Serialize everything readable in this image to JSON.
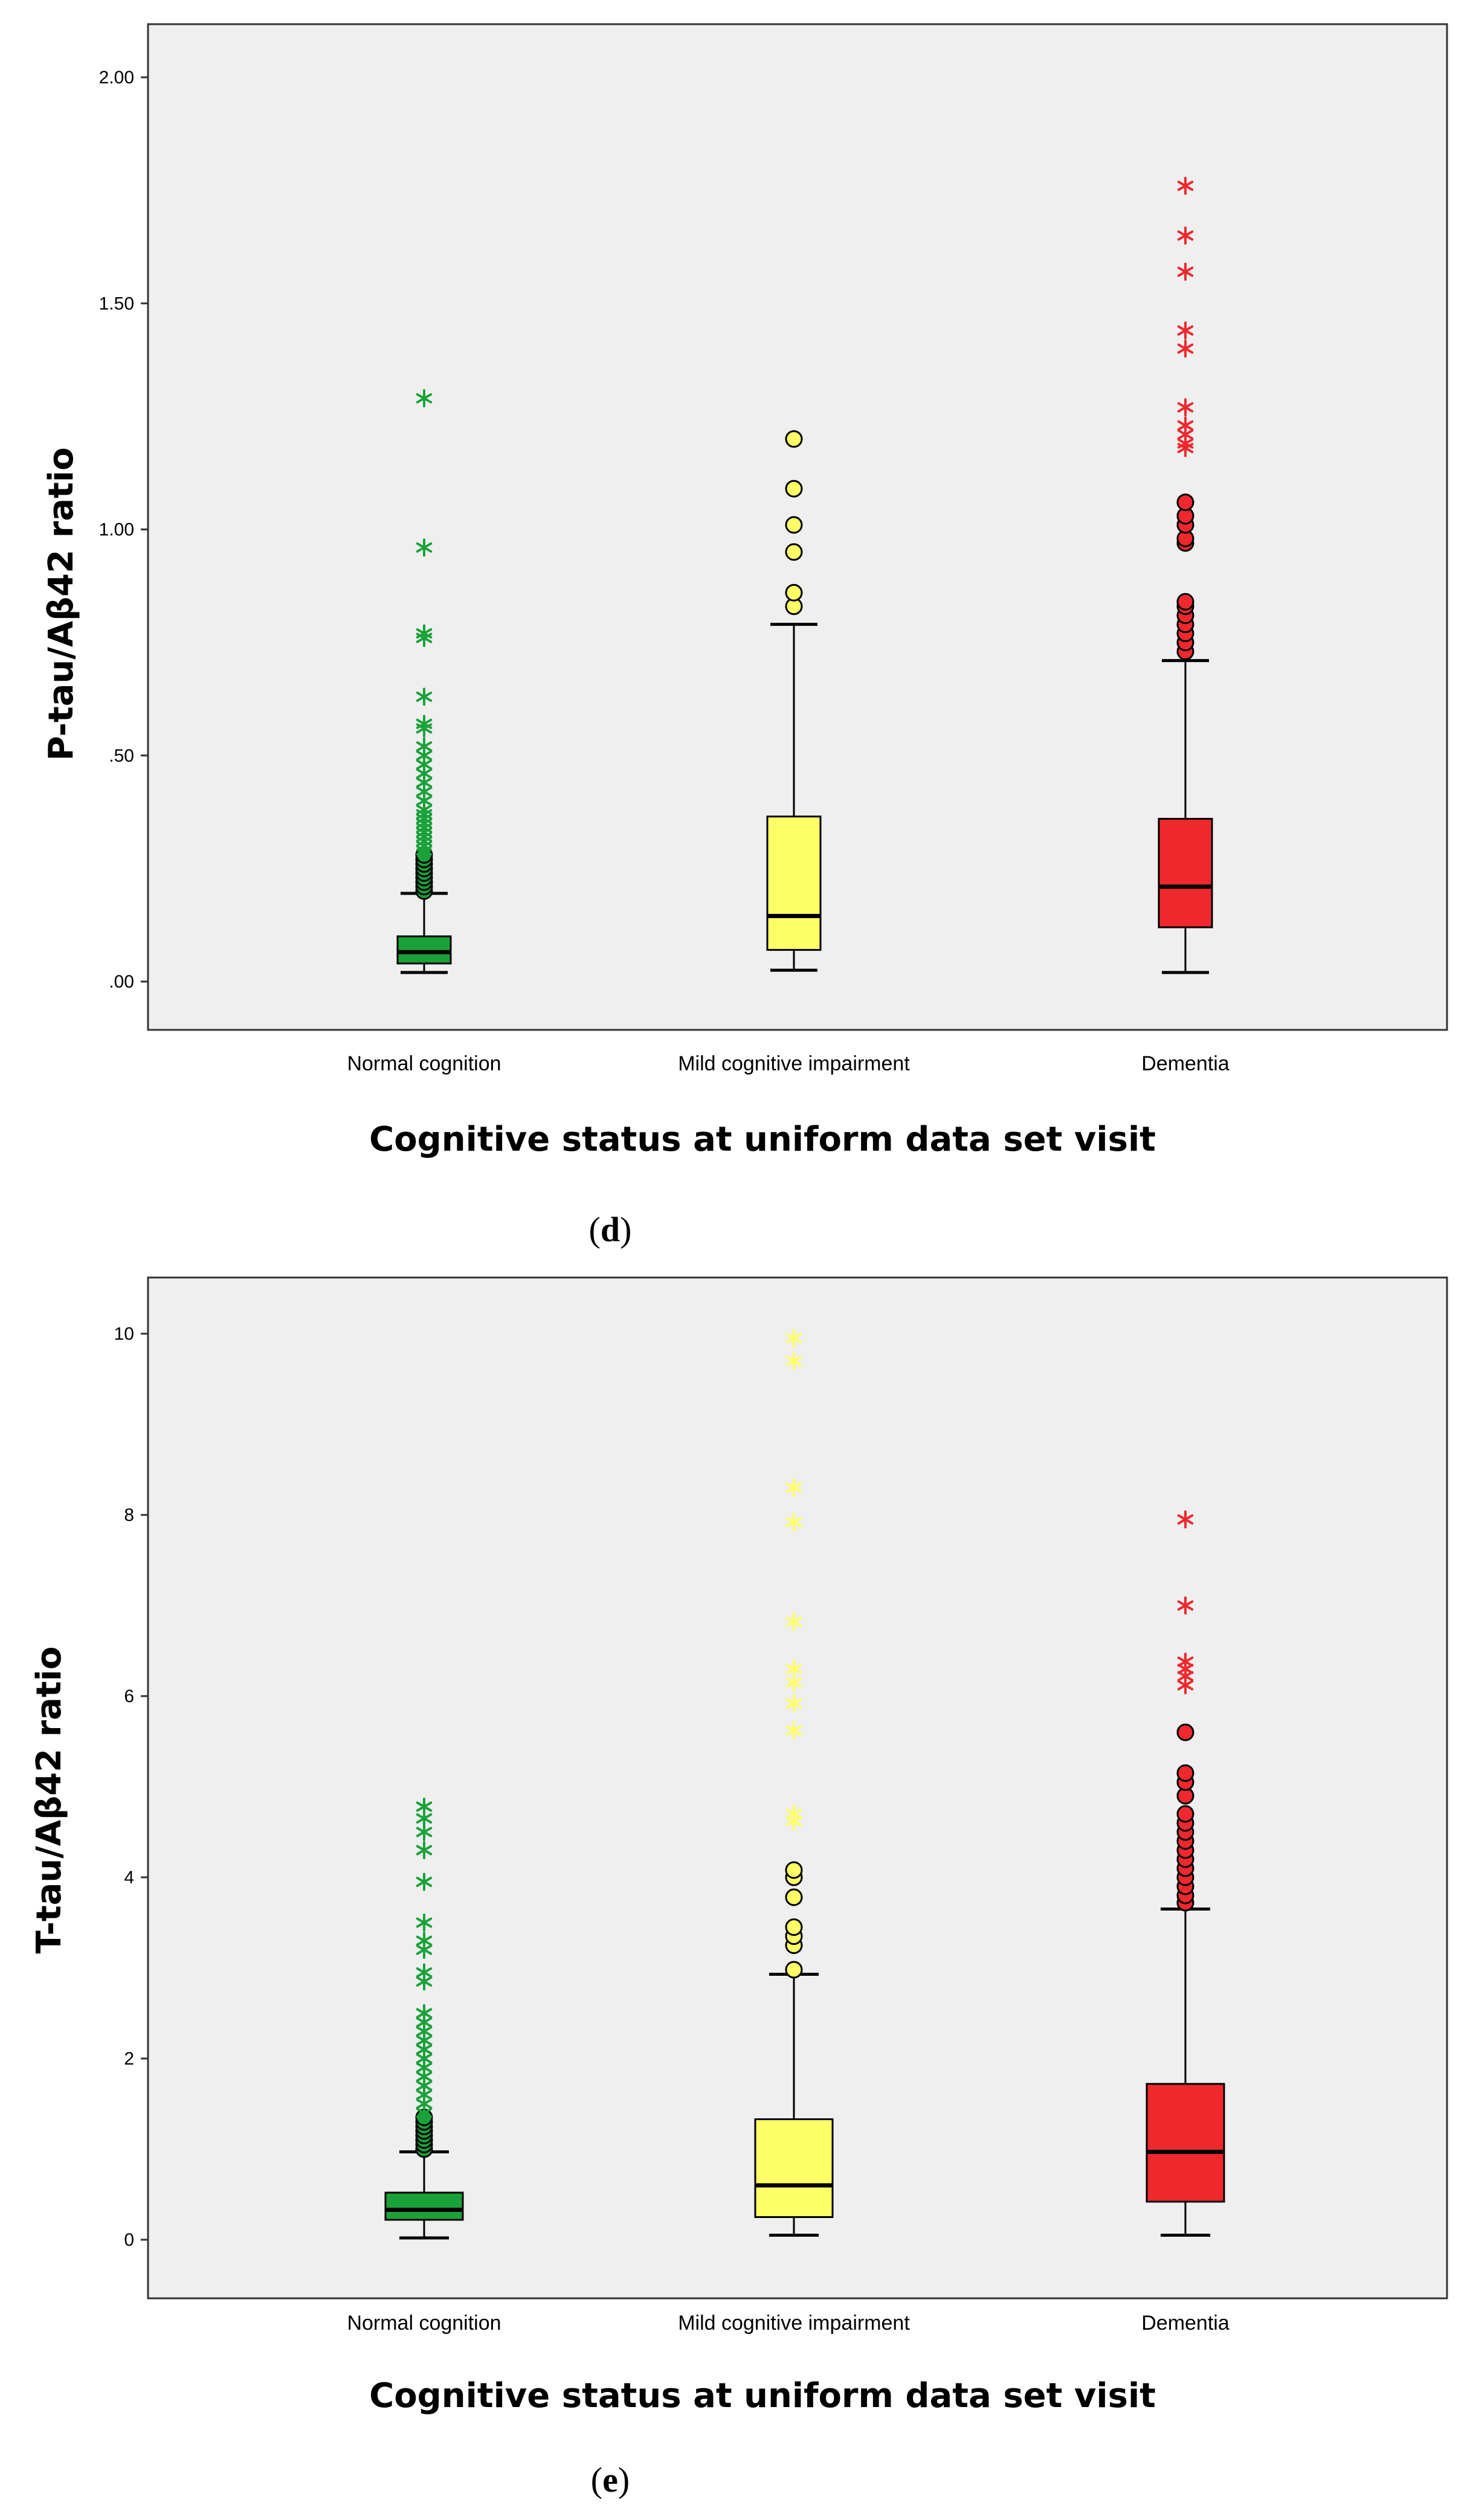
{
  "chart_data": [
    {
      "type": "box",
      "panel": "d",
      "ylabel": "P-tau/Aβ42 ratio",
      "xlabel": "Cognitive status at uniform data set visit",
      "ylim": [
        -0.06,
        2.12
      ],
      "yticks": [
        0.0,
        0.5,
        1.0,
        1.5,
        2.0
      ],
      "ytick_labels": [
        ".00",
        ".50",
        "1.00",
        "1.50",
        "2.00"
      ],
      "categories": [
        "Normal cognition",
        "Mild cognitive impairment",
        "Dementia"
      ],
      "boxes": [
        {
          "category": "Normal cognition",
          "color": "#1aa13a",
          "min": 0.02,
          "q1": 0.04,
          "median": 0.065,
          "q3": 0.1,
          "max": 0.195,
          "outliers_circle": [
            0.2,
            0.21,
            0.22,
            0.23,
            0.24,
            0.25,
            0.26,
            0.27,
            0.28
          ],
          "outliers_star": [
            0.29,
            0.3,
            0.31,
            0.32,
            0.33,
            0.34,
            0.35,
            0.36,
            0.37,
            0.38,
            0.4,
            0.42,
            0.44,
            0.46,
            0.48,
            0.5,
            0.52,
            0.56,
            0.57,
            0.63,
            0.76,
            0.77,
            0.96,
            1.29
          ]
        },
        {
          "category": "Mild cognitive impairment",
          "color": "#ffff66",
          "min": 0.025,
          "q1": 0.07,
          "median": 0.145,
          "q3": 0.365,
          "max": 0.79,
          "outliers_circle": [
            0.83,
            0.86,
            0.95,
            1.01,
            1.09,
            1.2
          ],
          "outliers_star": []
        },
        {
          "category": "Dementia",
          "color": "#f0282e",
          "min": 0.02,
          "q1": 0.12,
          "median": 0.21,
          "q3": 0.36,
          "max": 0.71,
          "outliers_circle": [
            0.73,
            0.75,
            0.77,
            0.79,
            0.81,
            0.83,
            0.84,
            0.97,
            0.98,
            1.01,
            1.03,
            1.06
          ],
          "outliers_star": [
            1.18,
            1.19,
            1.21,
            1.23,
            1.27,
            1.4,
            1.44,
            1.57,
            1.65,
            1.76
          ]
        }
      ]
    },
    {
      "type": "box",
      "panel": "e",
      "ylabel": "T-tau/Aβ42 ratio",
      "xlabel": "Cognitive status at uniform data set visit",
      "ylim": [
        -0.55,
        10.3
      ],
      "yticks": [
        0,
        2,
        4,
        6,
        8,
        10
      ],
      "ytick_labels": [
        "0",
        "2",
        "4",
        "6",
        "8",
        "10"
      ],
      "categories": [
        "Normal cognition",
        "Mild cognitive impairment",
        "Dementia"
      ],
      "boxes": [
        {
          "category": "Normal cognition",
          "color": "#1aa13a",
          "min": 0.02,
          "q1": 0.22,
          "median": 0.33,
          "q3": 0.52,
          "max": 0.97,
          "outliers_circle": [
            1.0,
            1.05,
            1.1,
            1.15,
            1.2,
            1.25,
            1.3,
            1.35
          ],
          "outliers_star": [
            1.4,
            1.5,
            1.6,
            1.7,
            1.8,
            1.9,
            2.0,
            2.1,
            2.2,
            2.3,
            2.4,
            2.5,
            2.85,
            2.95,
            3.2,
            3.3,
            3.5,
            3.95,
            4.3,
            4.5,
            4.65,
            4.78
          ]
        },
        {
          "category": "Mild cognitive impairment",
          "color": "#ffff66",
          "min": 0.05,
          "q1": 0.25,
          "median": 0.6,
          "q3": 1.33,
          "max": 2.93,
          "outliers_circle": [
            2.98,
            3.25,
            3.35,
            3.45,
            3.78,
            4.0,
            4.08
          ],
          "outliers_star": [
            4.62,
            4.7,
            5.62,
            5.92,
            6.15,
            6.3,
            6.82,
            7.92,
            8.3,
            9.7,
            9.95
          ]
        },
        {
          "category": "Dementia",
          "color": "#f0282e",
          "min": 0.05,
          "q1": 0.42,
          "median": 0.97,
          "q3": 1.72,
          "max": 3.65,
          "outliers_circle": [
            3.72,
            3.8,
            3.9,
            4.0,
            4.1,
            4.2,
            4.3,
            4.4,
            4.5,
            4.6,
            4.7,
            4.9,
            5.05,
            5.15,
            5.6
          ],
          "outliers_star": [
            6.12,
            6.22,
            6.3,
            6.38,
            7.0,
            7.95
          ]
        }
      ]
    }
  ]
}
